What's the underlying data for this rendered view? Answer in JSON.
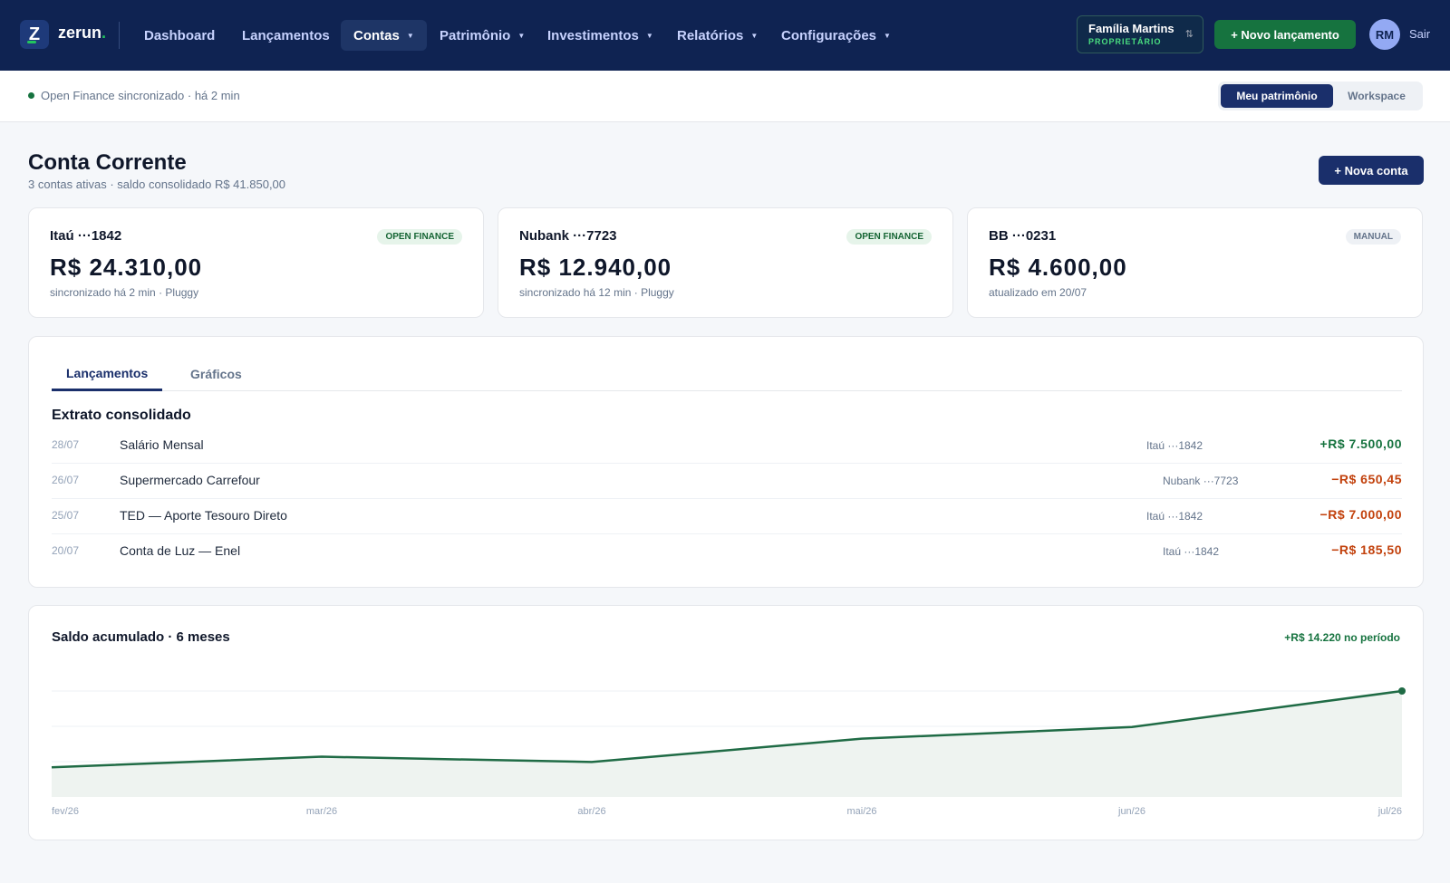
{
  "brand": {
    "logo_letter": "Z",
    "name": "zerun",
    "dot": "."
  },
  "nav": [
    {
      "label": "Dashboard",
      "caret": false,
      "active": false
    },
    {
      "label": "Lançamentos",
      "caret": false,
      "active": false
    },
    {
      "label": "Contas",
      "caret": true,
      "active": true
    },
    {
      "label": "Patrimônio",
      "caret": true,
      "active": false
    },
    {
      "label": "Investimentos",
      "caret": true,
      "active": false
    },
    {
      "label": "Relatórios",
      "caret": true,
      "active": false
    },
    {
      "label": "Configurações",
      "caret": true,
      "active": false
    }
  ],
  "family": {
    "name": "Família Martins",
    "role": "PROPRIETÁRIO",
    "swap_icon": "swap-icon"
  },
  "header": {
    "new_entry_label": "+ Novo lançamento",
    "avatar_initials": "RM",
    "logout_label": "Sair"
  },
  "subbar": {
    "sync_text": "Open Finance sincronizado · há 2 min",
    "segments": [
      "Meu patrimônio",
      "Workspace"
    ],
    "active_segment": 0
  },
  "page": {
    "title": "Conta Corrente",
    "subtitle": "3 contas ativas · saldo consolidado R$ 41.850,00",
    "new_account_label": "+ Nova conta"
  },
  "accounts": [
    {
      "name": "Itaú ···1842",
      "badge": "OPEN FINANCE",
      "badge_type": "of",
      "balance": "R$ 24.310,00",
      "meta": "sincronizado há 2 min · Pluggy"
    },
    {
      "name": "Nubank ···7723",
      "badge": "OPEN FINANCE",
      "badge_type": "of",
      "balance": "R$ 12.940,00",
      "meta": "sincronizado há 12 min · Pluggy"
    },
    {
      "name": "BB ···0231",
      "badge": "MANUAL",
      "badge_type": "manual",
      "balance": "R$ 4.600,00",
      "meta": "atualizado em 20/07"
    }
  ],
  "tabs": [
    {
      "label": "Lançamentos",
      "active": true
    },
    {
      "label": "Gráficos",
      "active": false
    }
  ],
  "statement": {
    "title": "Extrato consolidado",
    "rows": [
      {
        "date": "28/07",
        "description": "Salário Mensal",
        "account": "Itaú ···1842",
        "amount": "+R$ 7.500,00",
        "sign": "pos"
      },
      {
        "date": "26/07",
        "description": "Supermercado Carrefour",
        "account": "Nubank ···7723",
        "amount": "−R$ 650,45",
        "sign": "neg"
      },
      {
        "date": "25/07",
        "description": "TED — Aporte Tesouro Direto",
        "account": "Itaú ···1842",
        "amount": "−R$ 7.000,00",
        "sign": "neg"
      },
      {
        "date": "20/07",
        "description": "Conta de Luz — Enel",
        "account": "Itaú ···1842",
        "amount": "−R$ 185,50",
        "sign": "neg"
      }
    ]
  },
  "balance_chart": {
    "title": "Saldo acumulado · 6 meses",
    "delta": "+R$ 14.220 no período",
    "x_labels": [
      "fev/26",
      "mar/26",
      "abr/26",
      "mai/26",
      "jun/26",
      "jul/26"
    ],
    "relative_level": [
      0.28,
      0.38,
      0.33,
      0.55,
      0.66,
      1.0
    ],
    "line_color": "#1f6b45",
    "fill_color": "#eef3f0"
  }
}
